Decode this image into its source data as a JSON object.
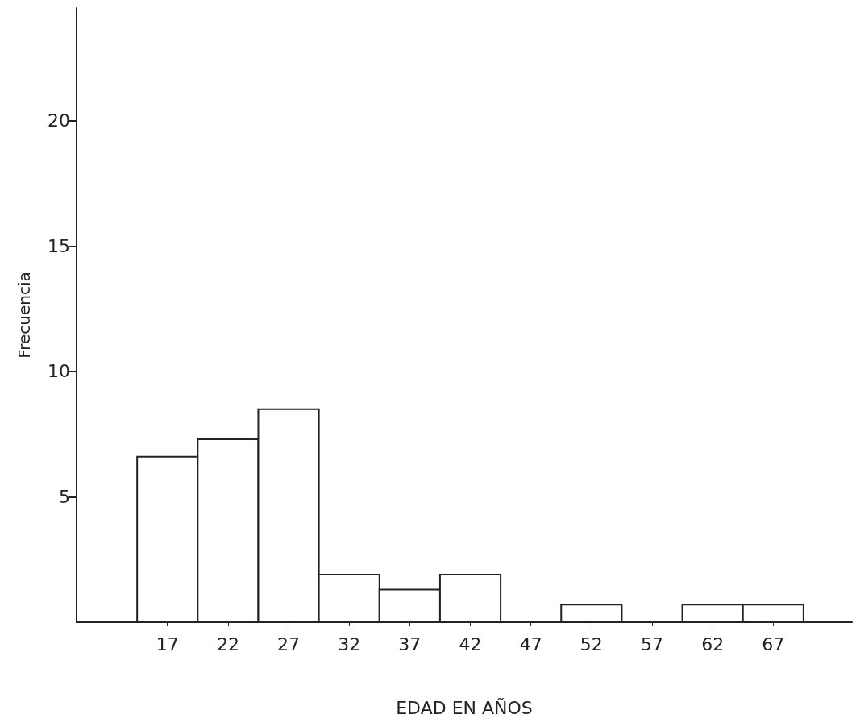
{
  "chart_data": {
    "type": "histogram",
    "xlabel": "EDAD EN AÑOS",
    "ylabel": "Frecuencia",
    "bins": [
      14.5,
      19.5,
      24.5,
      29.5,
      34.5,
      39.5,
      44.5,
      49.5,
      54.5,
      59.5,
      64.5,
      69.5
    ],
    "values": [
      6.6,
      7.3,
      8.5,
      1.9,
      1.3,
      1.9,
      0,
      0.7,
      0,
      0.7,
      0.7
    ],
    "color": "#ffffff",
    "xlim": [
      9.5,
      73.5
    ],
    "xticks": [
      17,
      22,
      27,
      32,
      37,
      42,
      47,
      52,
      57,
      62,
      67
    ],
    "ylim": [
      0,
      24.5
    ],
    "yticks": [
      5,
      10,
      15,
      20
    ],
    "grid": false
  }
}
